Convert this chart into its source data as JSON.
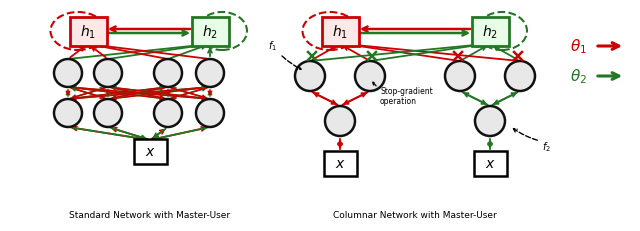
{
  "red": "#cc0000",
  "green": "#227722",
  "node_facecolor": "#e8e8e8",
  "node_edgecolor": "#111111",
  "box_red_face": "#fde8e8",
  "box_green_face": "#e8fde8",
  "left_label": "Standard Network with Master-User",
  "right_label": "Columnar Network with Master-User",
  "stop_grad_label": "Stop-gradient\noperation"
}
